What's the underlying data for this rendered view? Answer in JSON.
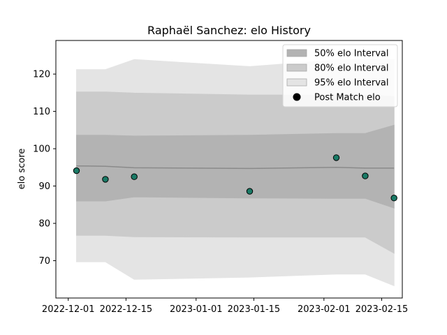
{
  "chart_data": {
    "type": "line",
    "title": "Raphaël Sanchez: elo History",
    "xlabel": "",
    "ylabel": "elo score",
    "xlim": [
      "2022-11-28",
      "2023-02-20"
    ],
    "ylim": [
      60,
      129
    ],
    "x_ticks": [
      "2022-12-01",
      "2022-12-15",
      "2023-01-01",
      "2023-01-15",
      "2023-02-01",
      "2023-02-15"
    ],
    "y_ticks": [
      70,
      80,
      90,
      100,
      110,
      120
    ],
    "grid": false,
    "legend_position": "upper-right",
    "x": [
      "2022-12-03",
      "2022-12-10",
      "2022-12-17",
      "2023-01-14",
      "2023-02-04",
      "2023-02-11",
      "2023-02-18"
    ],
    "mean": [
      95.4,
      95.3,
      94.9,
      94.7,
      95.0,
      94.8,
      94.8
    ],
    "bands": [
      {
        "name": "95% elo Interval",
        "color": "#e4e4e4",
        "upper": [
          121.2,
          121.2,
          123.9,
          122.0,
          123.8,
          123.9,
          123.9
        ],
        "lower": [
          69.7,
          69.7,
          65.0,
          65.6,
          66.4,
          66.4,
          63.3
        ]
      },
      {
        "name": "80% elo Interval",
        "color": "#cbcbcb",
        "upper": [
          115.2,
          115.2,
          114.9,
          114.4,
          114.4,
          114.4,
          114.0
        ],
        "lower": [
          76.8,
          76.8,
          76.4,
          76.3,
          76.3,
          76.3,
          72.0
        ]
      },
      {
        "name": "50% elo Interval",
        "color": "#b3b3b3",
        "upper": [
          103.6,
          103.6,
          103.4,
          103.6,
          104.1,
          104.1,
          106.3
        ],
        "lower": [
          86.0,
          86.0,
          87.1,
          86.8,
          86.7,
          86.7,
          84.1
        ]
      }
    ],
    "points": {
      "name": "Post Match elo",
      "color": "#1a7a66",
      "y": [
        94.1,
        91.8,
        92.5,
        88.6,
        97.6,
        92.7,
        86.8
      ]
    },
    "legend": [
      {
        "label": "50% elo Interval",
        "kind": "band",
        "color": "#b3b3b3"
      },
      {
        "label": "80% elo Interval",
        "kind": "band",
        "color": "#cbcbcb"
      },
      {
        "label": "95% elo Interval",
        "kind": "band",
        "color": "#e4e4e4"
      },
      {
        "label": "Post Match elo",
        "kind": "point",
        "color": "#000000"
      }
    ]
  }
}
